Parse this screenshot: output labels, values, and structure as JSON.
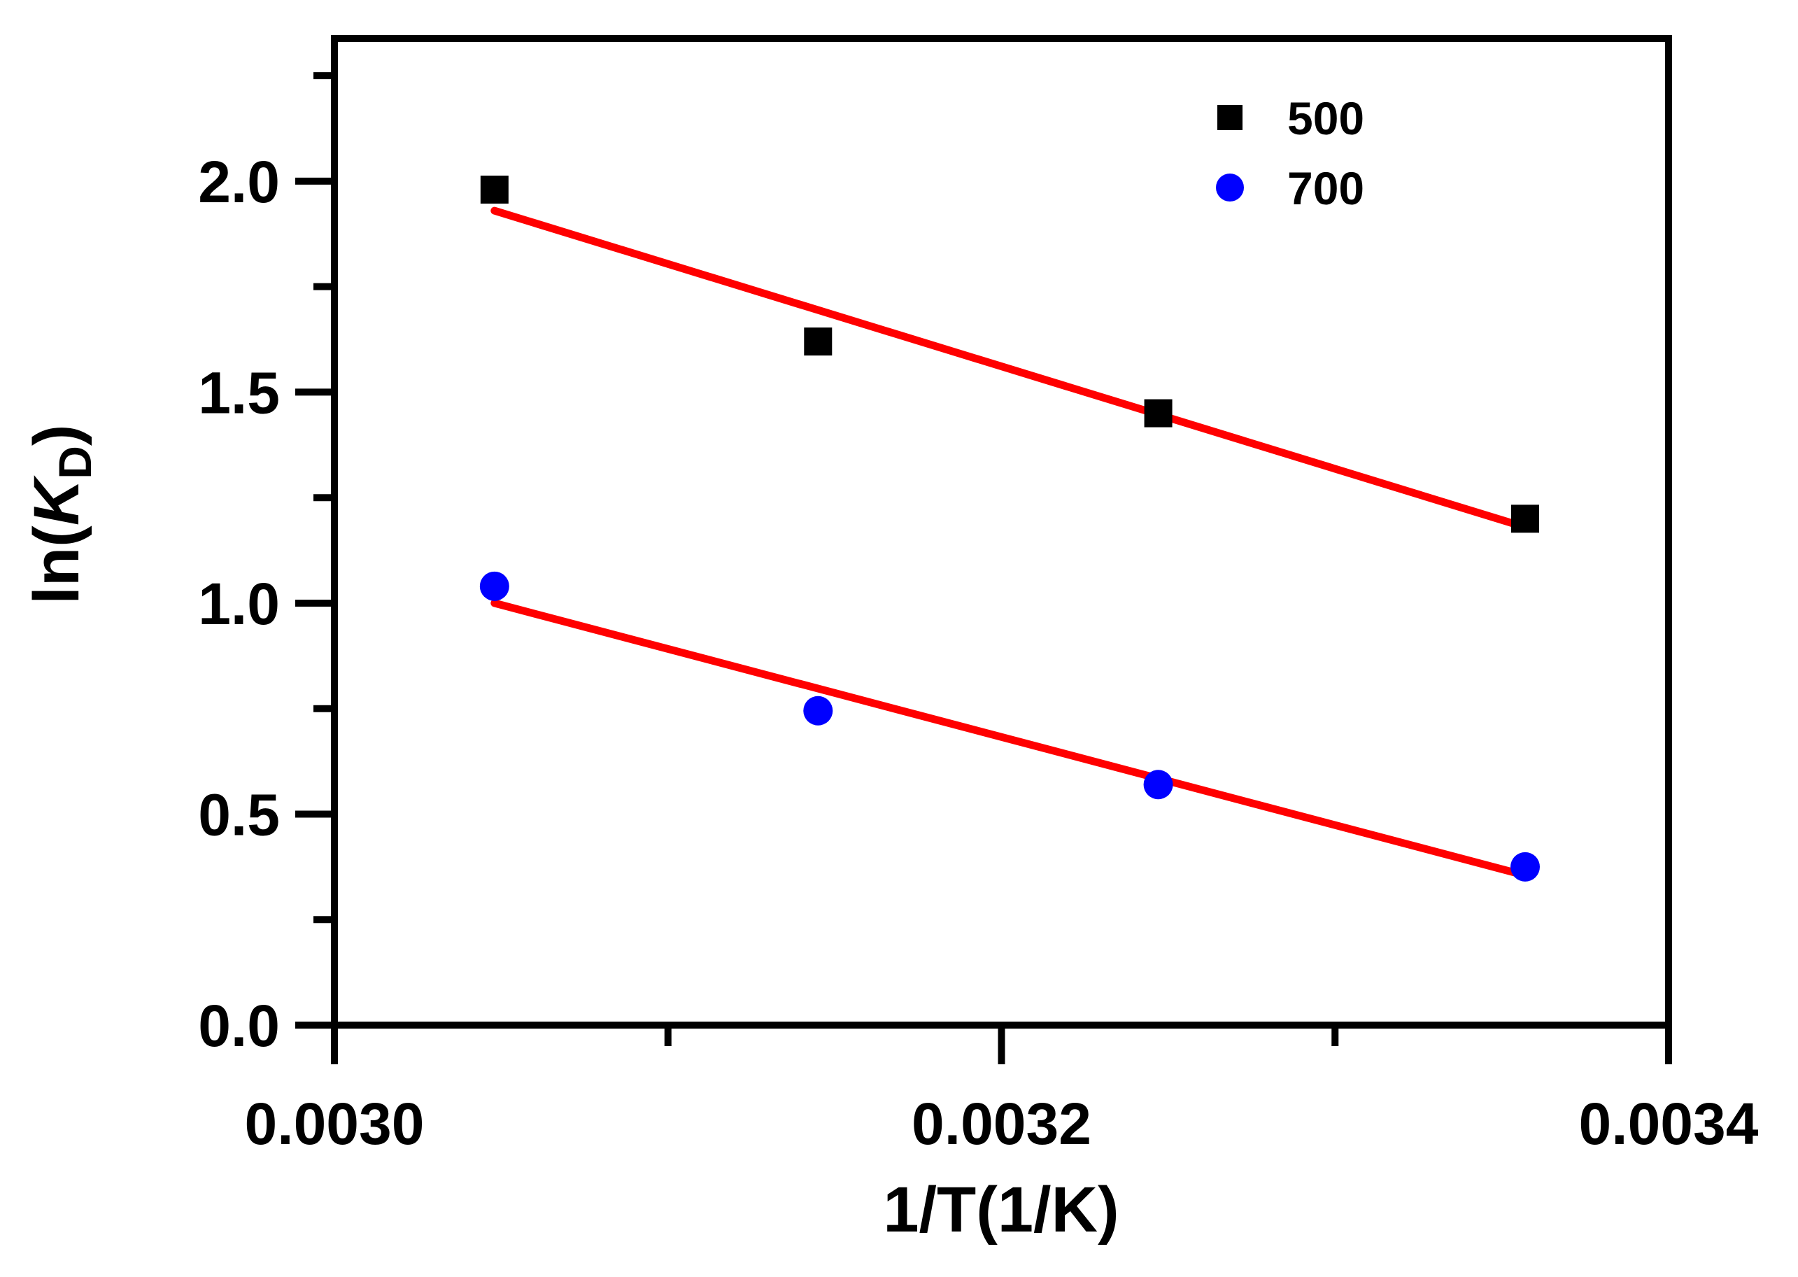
{
  "chart_data": {
    "type": "scatter",
    "title": "",
    "xlabel": "1/T(1/K)",
    "ylabel": {
      "prefix": "ln(",
      "italic": "K",
      "subscript": "D",
      "suffix": ")"
    },
    "xlim": [
      0.003,
      0.0034
    ],
    "ylim": [
      0,
      2.3
    ],
    "xticks": [
      {
        "value": 0.003,
        "label": "0.0030"
      },
      {
        "value": 0.0032,
        "label": "0.0032"
      },
      {
        "value": 0.0034,
        "label": "0.0034"
      }
    ],
    "xminor": [
      0.0031,
      0.0033
    ],
    "yticks": [
      {
        "value": 0.0,
        "label": "0.0"
      },
      {
        "value": 0.5,
        "label": "0.5"
      },
      {
        "value": 1.0,
        "label": "1.0"
      },
      {
        "value": 1.5,
        "label": "1.5"
      },
      {
        "value": 2.0,
        "label": "2.0"
      }
    ],
    "yminor": [
      0.25,
      0.75,
      1.25,
      1.75,
      2.25
    ],
    "legend_position": "top-right",
    "series": [
      {
        "name": "500",
        "marker": "square",
        "color": "#000000",
        "x": [
          0.003048,
          0.003145,
          0.003247,
          0.003357
        ],
        "y": [
          1.98,
          1.62,
          1.45,
          1.2
        ],
        "fit": {
          "color": "#ff0000",
          "x": [
            0.003048,
            0.003357
          ],
          "y": [
            1.93,
            1.18
          ]
        }
      },
      {
        "name": "700",
        "marker": "circle",
        "color": "#0000ff",
        "x": [
          0.003048,
          0.003145,
          0.003247,
          0.003357
        ],
        "y": [
          1.04,
          0.745,
          0.57,
          0.375
        ],
        "fit": {
          "color": "#ff0000",
          "x": [
            0.003048,
            0.003357
          ],
          "y": [
            1.0,
            0.355
          ]
        }
      }
    ]
  }
}
